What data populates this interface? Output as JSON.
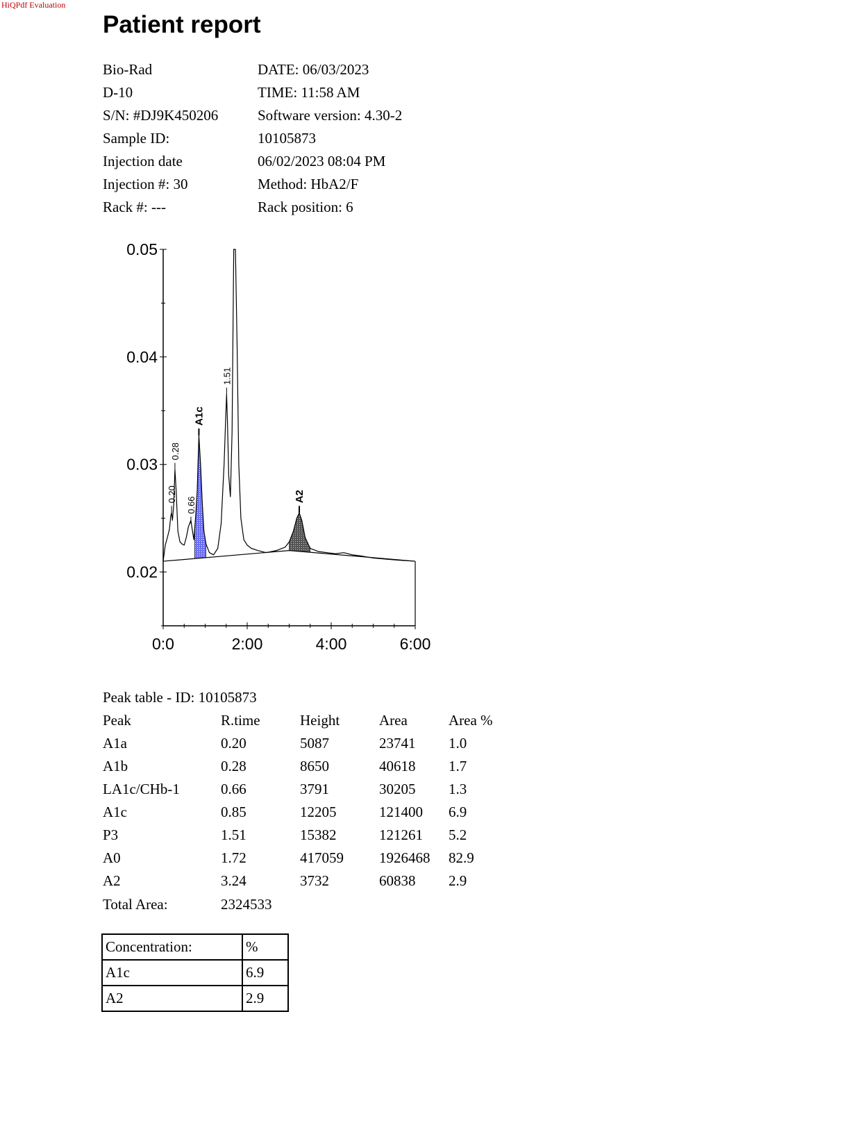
{
  "watermark": "HiQPdf Evaluation",
  "title": "Patient report",
  "info": {
    "rows": [
      [
        "Bio-Rad",
        "DATE: 06/03/2023"
      ],
      [
        "D-10",
        "TIME:  11:58 AM"
      ],
      [
        "S/N: #DJ9K450206",
        "Software version: 4.30-2"
      ],
      [
        "Sample ID:",
        "10105873"
      ],
      [
        "Injection date",
        "06/02/2023 08:04 PM"
      ],
      [
        "Injection #: 30",
        "Method: HbA2/F"
      ],
      [
        "Rack #: ---",
        "Rack position: 6"
      ]
    ]
  },
  "chart_data": {
    "type": "line",
    "title": "",
    "xlabel": "",
    "ylabel": "",
    "xlim": [
      0,
      6
    ],
    "ylim": [
      0.015,
      0.05
    ],
    "x_tick_labels": [
      "0:0",
      "2:00",
      "4:00",
      "6:00"
    ],
    "x_ticks": [
      0,
      2,
      4,
      6
    ],
    "y_tick_labels": [
      "0.05",
      "0.04",
      "0.03",
      "0.02"
    ],
    "y_ticks": [
      0.05,
      0.04,
      0.03,
      0.02
    ],
    "grid": false,
    "peak_labels": [
      {
        "text": "0.20",
        "x": 0.2,
        "y": 0.0255,
        "bold": false
      },
      {
        "text": "0.28",
        "x": 0.28,
        "y": 0.0295,
        "bold": false
      },
      {
        "text": "0.66",
        "x": 0.66,
        "y": 0.0245,
        "bold": false
      },
      {
        "text": "A1c",
        "x": 0.85,
        "y": 0.0327,
        "bold": true
      },
      {
        "text": "1.51",
        "x": 1.51,
        "y": 0.0365,
        "bold": false
      },
      {
        "text": "A2",
        "x": 3.24,
        "y": 0.0255,
        "bold": true
      }
    ],
    "series": [
      {
        "x": [
          0.0,
          0.05,
          0.1,
          0.15,
          0.18,
          0.2,
          0.22,
          0.25,
          0.28,
          0.31,
          0.35,
          0.4,
          0.45,
          0.5,
          0.55,
          0.6,
          0.63,
          0.66,
          0.69,
          0.73,
          0.77,
          0.81,
          0.85,
          0.89,
          0.93,
          0.97,
          1.02,
          1.1,
          1.2,
          1.3,
          1.38,
          1.45,
          1.49,
          1.51,
          1.53,
          1.56,
          1.6,
          1.64,
          1.68,
          1.72,
          1.76,
          1.8,
          1.85,
          1.92,
          2.0,
          2.1,
          2.25,
          2.45,
          2.7,
          2.9,
          3.0,
          3.1,
          3.18,
          3.24,
          3.3,
          3.38,
          3.5,
          3.7,
          3.9,
          4.1,
          4.3,
          4.5,
          4.7,
          5.0,
          5.3,
          5.6,
          6.0
        ],
        "y": [
          0.021,
          0.0225,
          0.0232,
          0.024,
          0.0252,
          0.0255,
          0.0248,
          0.0262,
          0.0295,
          0.0275,
          0.0238,
          0.0228,
          0.0226,
          0.0225,
          0.0232,
          0.0242,
          0.0245,
          0.0248,
          0.024,
          0.023,
          0.025,
          0.0275,
          0.0327,
          0.03,
          0.0265,
          0.0238,
          0.0226,
          0.0218,
          0.0216,
          0.0222,
          0.0245,
          0.03,
          0.0345,
          0.0365,
          0.034,
          0.029,
          0.027,
          0.033,
          0.05,
          0.05,
          0.041,
          0.03,
          0.025,
          0.023,
          0.0225,
          0.0222,
          0.022,
          0.0218,
          0.022,
          0.0223,
          0.0228,
          0.0238,
          0.025,
          0.0255,
          0.0248,
          0.0232,
          0.0222,
          0.0219,
          0.0218,
          0.0217,
          0.0218,
          0.0216,
          0.0215,
          0.0213,
          0.0212,
          0.0211,
          0.021
        ]
      }
    ],
    "baseline": {
      "x": [
        0,
        3.0,
        6.0
      ],
      "y": [
        0.021,
        0.022,
        0.021
      ]
    },
    "filled_peaks": [
      {
        "name": "A1c",
        "from": 0.75,
        "to": 1.02,
        "color": "#5e62d6"
      },
      {
        "name": "A2",
        "from": 3.0,
        "to": 3.5,
        "color": "#666666"
      }
    ]
  },
  "peak_table": {
    "title": "Peak table  -  ID: 10105873",
    "headers": [
      "Peak",
      "R.time",
      "Height",
      "Area",
      "Area %"
    ],
    "rows": [
      [
        "A1a",
        "0.20",
        "5087",
        "23741",
        "1.0"
      ],
      [
        "A1b",
        "0.28",
        "8650",
        "40618",
        "1.7"
      ],
      [
        "LA1c/CHb-1",
        "0.66",
        "3791",
        "30205",
        "1.3"
      ],
      [
        "A1c",
        "0.85",
        "12205",
        "121400",
        "6.9"
      ],
      [
        "P3",
        "1.51",
        "15382",
        "121261",
        "5.2"
      ],
      [
        "A0",
        "1.72",
        "417059",
        "1926468",
        "82.9"
      ],
      [
        "A2",
        "3.24",
        "3732",
        "60838",
        "2.9"
      ]
    ],
    "total_label": "Total Area:",
    "total_value": "2324533"
  },
  "concentration": {
    "header": [
      "Concentration:",
      "%"
    ],
    "rows": [
      [
        "A1c",
        "6.9"
      ],
      [
        "A2",
        "2.9"
      ]
    ]
  }
}
